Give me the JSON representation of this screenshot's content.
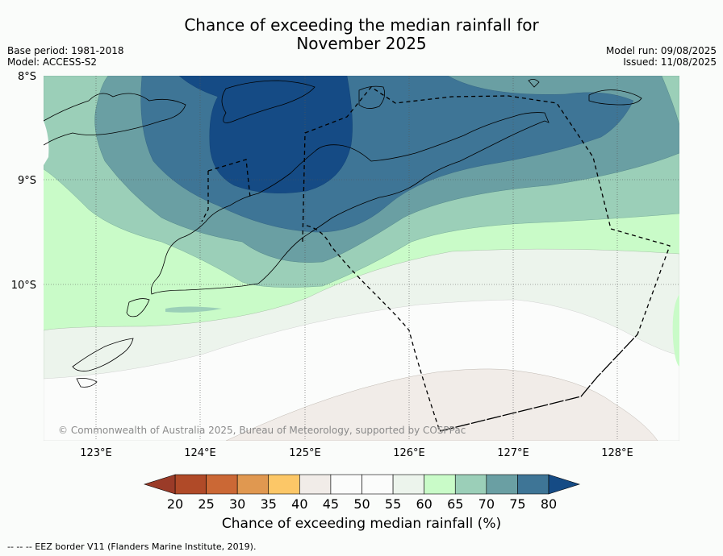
{
  "title_line1": "Chance of exceeding the median rainfall for",
  "title_line2": "November 2025",
  "base_period": "Base period: 1981-2018",
  "model": "Model: ACCESS-S2",
  "model_run": "Model run: 09/08/2025",
  "issued": "Issued: 11/08/2025",
  "lat_labels": [
    "8°S",
    "9°S",
    "10°S"
  ],
  "lon_labels": [
    "123°E",
    "124°E",
    "125°E",
    "126°E",
    "127°E",
    "128°E"
  ],
  "copyright": "© Commonwealth of Australia 2025, Bureau of Meteorology, supported by COSPPac",
  "colorbar": {
    "ticks": [
      "20",
      "25",
      "30",
      "35",
      "40",
      "45",
      "50",
      "55",
      "60",
      "65",
      "70",
      "75",
      "80"
    ],
    "colors": [
      "#b04a28",
      "#cb6835",
      "#e09850",
      "#fcc767",
      "#f1ece8",
      "#fbfcfb",
      "#fbfcfb",
      "#ecf4ec",
      "#c9fbc8",
      "#9bcfb8",
      "#6a9fa3",
      "#3e7596"
    ],
    "under_color": "#9a3b28",
    "over_color": "#154b85",
    "label": "Chance of exceeding median rainfall (%)"
  },
  "eez_note": "--  --  -- EEZ border V11 (Flanders Marine Institute, 2019)."
}
